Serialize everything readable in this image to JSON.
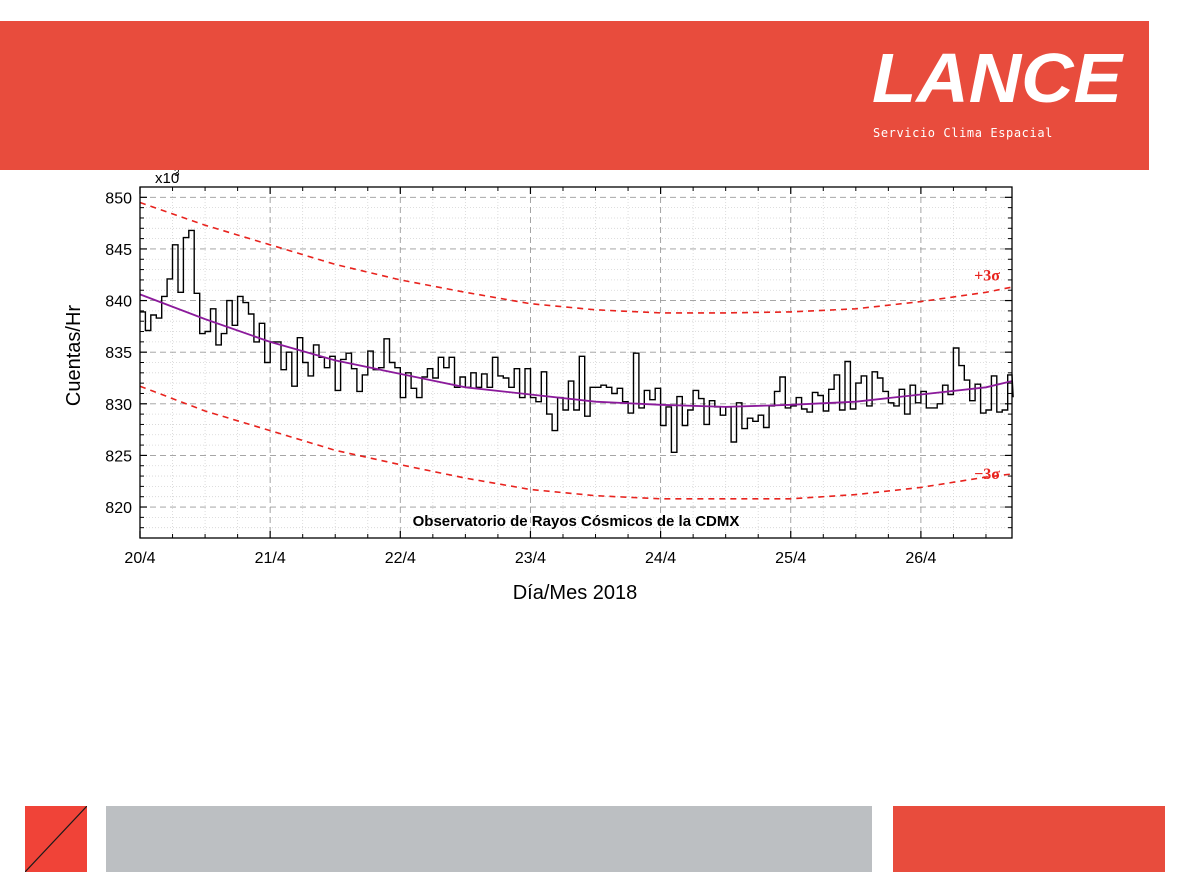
{
  "header": {
    "brand": "LANCE",
    "subtitle": "Servicio Clima Espacial",
    "color": "#e84c3d"
  },
  "footer": {
    "gray": "#bcbfc2",
    "red": "#e84c3d"
  },
  "chart_data": {
    "type": "line",
    "title": "Observatorio de Rayos Cósmicos de la CDMX",
    "xlabel": "Día/Mes 2018",
    "ylabel": "Cuentas/Hr",
    "y_multiplier": "x10",
    "y_multiplier_exp": "3",
    "ylim": [
      817,
      851
    ],
    "xlim": [
      0,
      6.7
    ],
    "xticks": [
      0,
      1,
      2,
      3,
      4,
      5,
      6
    ],
    "xtick_labels": [
      "20/4",
      "21/4",
      "22/4",
      "23/4",
      "24/4",
      "25/4",
      "26/4"
    ],
    "yticks": [
      820,
      825,
      830,
      835,
      840,
      845,
      850
    ],
    "grid": true,
    "colors": {
      "data": "#000000",
      "fit": "#8b1a9b",
      "sigma": "#e8231e",
      "grid": "#9a9a9a"
    },
    "series": [
      {
        "name": "",
        "style": "step",
        "step_days": 0.041667,
        "x_start": 0,
        "values": [
          838.9,
          837.1,
          838.6,
          838.3,
          840.4,
          842.1,
          845.4,
          840.8,
          846.1,
          846.8,
          840.7,
          836.8,
          837.0,
          839.2,
          835.7,
          836.8,
          840.0,
          837.6,
          840.4,
          839.8,
          838.7,
          836.0,
          837.8,
          834.0,
          836.0,
          836.0,
          833.3,
          835.0,
          831.7,
          836.4,
          834.0,
          832.7,
          835.7,
          834.5,
          833.5,
          834.6,
          831.3,
          834.3,
          834.9,
          833.4,
          831.2,
          832.8,
          835.1,
          833.3,
          833.5,
          836.3,
          834.0,
          833.5,
          830.6,
          833.0,
          831.5,
          830.6,
          832.6,
          833.4,
          832.5,
          834.5,
          833.5,
          834.5,
          831.6,
          832.6,
          831.6,
          833.0,
          831.6,
          832.9,
          831.6,
          834.5,
          832.7,
          832.5,
          831.6,
          833.4,
          830.6,
          833.4,
          830.6,
          830.2,
          833.1,
          829.0,
          827.4,
          830.6,
          829.4,
          832.2,
          829.4,
          834.6,
          828.8,
          831.6,
          831.6,
          831.8,
          831.6,
          831.0,
          831.5,
          830.2,
          829.1,
          834.9,
          829.6,
          831.3,
          830.4,
          831.5,
          827.9,
          829.7,
          825.3,
          830.7,
          827.9,
          829.4,
          831.3,
          830.5,
          828.0,
          830.3,
          829.7,
          828.9,
          829.7,
          826.3,
          830.1,
          827.6,
          828.6,
          828.3,
          828.9,
          827.7,
          829.8,
          831.2,
          832.6,
          829.6,
          829.8,
          830.6,
          829.5,
          829.2,
          831.1,
          830.8,
          829.3,
          831.4,
          832.8,
          829.4,
          834.1,
          829.5,
          832.0,
          832.7,
          829.8,
          833.1,
          832.5,
          831.2,
          830.1,
          829.8,
          831.4,
          829.0,
          831.8,
          830.1,
          831.2,
          829.6,
          829.6,
          830.0,
          831.8,
          830.9,
          835.4,
          833.7,
          832.3,
          830.3,
          831.9,
          829.1,
          829.4,
          832.7,
          829.2,
          829.4,
          832.8,
          830.7
        ]
      },
      {
        "name": "",
        "style": "fit",
        "x": [
          0,
          0.5,
          1,
          1.5,
          2,
          2.5,
          3,
          3.5,
          4,
          4.5,
          5,
          5.5,
          6,
          6.5,
          6.7
        ],
        "values": [
          840.6,
          838.2,
          836.0,
          834.2,
          832.9,
          831.6,
          830.9,
          830.2,
          829.9,
          829.7,
          829.9,
          830.2,
          830.9,
          831.6,
          832.2
        ]
      },
      {
        "name": "+3σ",
        "style": "dashed",
        "x": [
          0,
          0.5,
          1,
          1.5,
          2,
          2.5,
          3,
          3.5,
          4,
          4.5,
          5,
          5.5,
          6,
          6.5,
          6.7
        ],
        "values": [
          849.5,
          847.3,
          845.4,
          843.5,
          842.0,
          840.8,
          839.7,
          839.1,
          838.8,
          838.8,
          838.9,
          839.2,
          839.9,
          840.8,
          841.3
        ]
      },
      {
        "name": "−3σ",
        "style": "dashed",
        "x": [
          0,
          0.5,
          1,
          1.5,
          2,
          2.5,
          3,
          3.5,
          4,
          4.5,
          5,
          5.5,
          6,
          6.5,
          6.7
        ],
        "values": [
          831.7,
          829.3,
          827.4,
          825.5,
          824.1,
          822.8,
          821.7,
          821.1,
          820.8,
          820.8,
          820.8,
          821.2,
          821.9,
          822.9,
          823.2
        ]
      }
    ]
  }
}
